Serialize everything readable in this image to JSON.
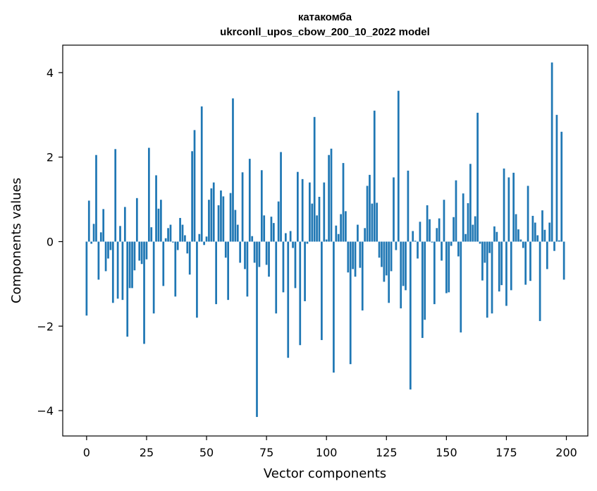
{
  "chart_data": {
    "type": "bar",
    "title": "катакомба",
    "subtitle": "ukrconll_upos_cbow_200_10_2022 model",
    "xlabel": "Vector components",
    "ylabel": "Components values",
    "xlim": [
      -9.95,
      208.95
    ],
    "ylim": [
      -4.6,
      4.65
    ],
    "xticks": [
      0,
      25,
      50,
      75,
      100,
      125,
      150,
      175,
      200
    ],
    "xtick_labels": [
      "0",
      "25",
      "50",
      "75",
      "100",
      "125",
      "150",
      "175",
      "200"
    ],
    "yticks": [
      -4,
      -2,
      0,
      2,
      4
    ],
    "ytick_labels": [
      "−4",
      "−2",
      "0",
      "2",
      "4"
    ],
    "grid": false,
    "bar_color": "#1f77b4",
    "x": [
      0,
      1,
      2,
      3,
      4,
      5,
      6,
      7,
      8,
      9,
      10,
      11,
      12,
      13,
      14,
      15,
      16,
      17,
      18,
      19,
      20,
      21,
      22,
      23,
      24,
      25,
      26,
      27,
      28,
      29,
      30,
      31,
      32,
      33,
      34,
      35,
      36,
      37,
      38,
      39,
      40,
      41,
      42,
      43,
      44,
      45,
      46,
      47,
      48,
      49,
      50,
      51,
      52,
      53,
      54,
      55,
      56,
      57,
      58,
      59,
      60,
      61,
      62,
      63,
      64,
      65,
      66,
      67,
      68,
      69,
      70,
      71,
      72,
      73,
      74,
      75,
      76,
      77,
      78,
      79,
      80,
      81,
      82,
      83,
      84,
      85,
      86,
      87,
      88,
      89,
      90,
      91,
      92,
      93,
      94,
      95,
      96,
      97,
      98,
      99,
      100,
      101,
      102,
      103,
      104,
      105,
      106,
      107,
      108,
      109,
      110,
      111,
      112,
      113,
      114,
      115,
      116,
      117,
      118,
      119,
      120,
      121,
      122,
      123,
      124,
      125,
      126,
      127,
      128,
      129,
      130,
      131,
      132,
      133,
      134,
      135,
      136,
      137,
      138,
      139,
      140,
      141,
      142,
      143,
      144,
      145,
      146,
      147,
      148,
      149,
      150,
      151,
      152,
      153,
      154,
      155,
      156,
      157,
      158,
      159,
      160,
      161,
      162,
      163,
      164,
      165,
      166,
      167,
      168,
      169,
      170,
      171,
      172,
      173,
      174,
      175,
      176,
      177,
      178,
      179,
      180,
      181,
      182,
      183,
      184,
      185,
      186,
      187,
      188,
      189,
      190,
      191,
      192,
      193,
      194,
      195,
      196,
      197,
      198,
      199
    ],
    "values": [
      -1.75,
      0.97,
      -0.05,
      0.42,
      2.05,
      -0.9,
      0.22,
      0.77,
      -0.7,
      -0.4,
      -0.2,
      -1.45,
      2.19,
      -1.35,
      0.37,
      -1.38,
      0.82,
      -2.25,
      -1.1,
      -1.1,
      -0.68,
      1.03,
      -0.45,
      -0.53,
      -2.42,
      -0.42,
      2.22,
      0.34,
      -1.7,
      1.57,
      0.78,
      0.99,
      -1.05,
      0.08,
      0.32,
      0.4,
      -0.02,
      -1.3,
      -0.2,
      0.56,
      0.4,
      0.15,
      -0.28,
      -0.78,
      2.14,
      2.64,
      -1.8,
      0.18,
      3.2,
      -0.08,
      0.12,
      0.99,
      1.26,
      1.4,
      -1.48,
      0.86,
      1.21,
      1.07,
      -0.38,
      -1.38,
      1.15,
      3.39,
      0.75,
      0.4,
      -0.5,
      1.64,
      -0.65,
      -1.3,
      1.96,
      0.13,
      -0.5,
      -4.15,
      -0.6,
      1.69,
      0.62,
      -0.55,
      -0.83,
      0.59,
      0.44,
      -1.7,
      0.95,
      2.12,
      -1.2,
      0.2,
      -2.75,
      0.25,
      -0.15,
      -1.1,
      1.65,
      -2.45,
      1.48,
      -1.41,
      -0.05,
      1.4,
      0.9,
      2.95,
      0.62,
      1.06,
      -2.33,
      1.4,
      0.05,
      2.05,
      2.2,
      -3.1,
      0.38,
      0.18,
      0.65,
      1.86,
      0.72,
      -0.73,
      -2.9,
      -0.65,
      -0.83,
      0.4,
      -0.62,
      -1.63,
      0.32,
      1.32,
      1.58,
      0.9,
      3.1,
      0.92,
      -0.38,
      -0.6,
      -0.95,
      -0.8,
      -1.45,
      -0.7,
      1.52,
      -0.2,
      3.57,
      -1.58,
      -1.05,
      -1.15,
      1.68,
      -3.5,
      0.25,
      0.02,
      -0.4,
      0.47,
      -2.28,
      -1.85,
      0.86,
      0.53,
      -0.02,
      -1.48,
      0.32,
      0.55,
      -0.45,
      0.99,
      -1.22,
      -1.2,
      -0.1,
      0.58,
      1.45,
      -0.35,
      -2.15,
      1.14,
      0.18,
      0.91,
      1.84,
      0.4,
      0.6,
      3.05,
      -0.05,
      -0.92,
      -0.5,
      -1.8,
      -0.27,
      -1.7,
      0.36,
      0.23,
      -1.18,
      -1.03,
      1.73,
      -1.52,
      1.52,
      -1.15,
      1.63,
      0.65,
      0.29,
      0.05,
      -0.15,
      -1.02,
      1.32,
      -0.93,
      0.61,
      0.45,
      0.15,
      -1.88,
      0.74,
      0.28,
      -0.65,
      0.45,
      4.24,
      -0.22,
      3.0,
      0.03,
      2.6,
      -0.9
    ]
  }
}
